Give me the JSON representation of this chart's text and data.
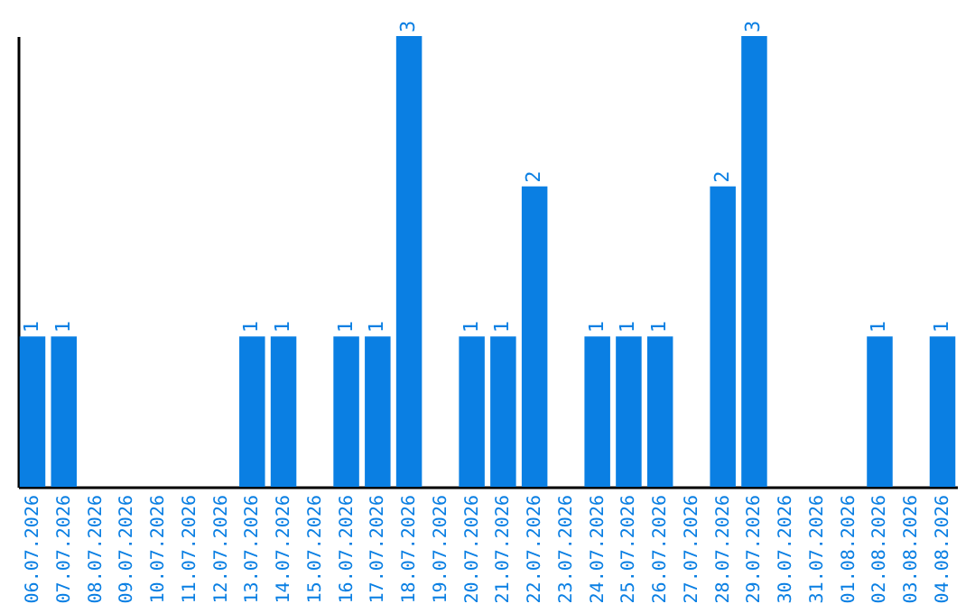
{
  "chart_data": {
    "type": "bar",
    "categories": [
      "06.07.2026",
      "07.07.2026",
      "08.07.2026",
      "09.07.2026",
      "10.07.2026",
      "11.07.2026",
      "12.07.2026",
      "13.07.2026",
      "14.07.2026",
      "15.07.2026",
      "16.07.2026",
      "17.07.2026",
      "18.07.2026",
      "19.07.2026",
      "20.07.2026",
      "21.07.2026",
      "22.07.2026",
      "23.07.2026",
      "24.07.2026",
      "25.07.2026",
      "26.07.2026",
      "27.07.2026",
      "28.07.2026",
      "29.07.2026",
      "30.07.2026",
      "31.07.2026",
      "01.08.2026",
      "02.08.2026",
      "03.08.2026",
      "04.08.2026"
    ],
    "values": [
      1,
      1,
      0,
      0,
      0,
      0,
      0,
      1,
      1,
      0,
      1,
      1,
      3,
      0,
      1,
      1,
      2,
      0,
      1,
      1,
      1,
      0,
      2,
      3,
      0,
      0,
      0,
      1,
      0,
      1
    ],
    "value_labels": [
      "1",
      "1",
      null,
      null,
      null,
      null,
      null,
      "1",
      "1",
      null,
      "1",
      "1",
      "3",
      null,
      "1",
      "1",
      "2",
      null,
      "1",
      "1",
      "1",
      null,
      "2",
      "3",
      null,
      null,
      null,
      "1",
      null,
      "1"
    ],
    "color": "#0a7fe3",
    "tick_labels": "x",
    "grid": false
  }
}
